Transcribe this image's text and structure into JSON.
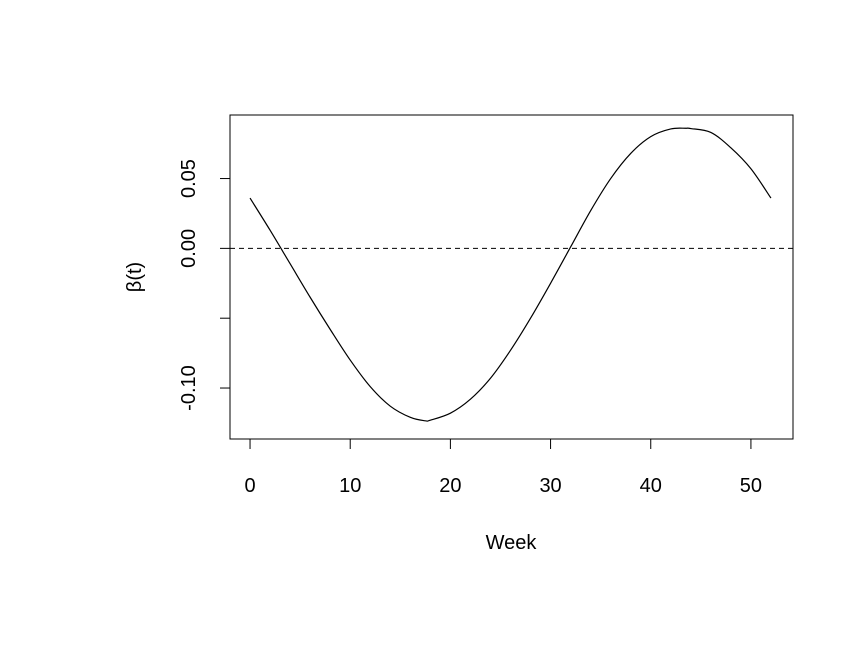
{
  "chart_data": {
    "type": "line",
    "title": "",
    "xlabel": "Week",
    "ylabel": "β(t)",
    "xlim": [
      -2,
      54.2
    ],
    "ylim": [
      -0.1365,
      0.0955
    ],
    "x_ticks": [
      0,
      10,
      20,
      30,
      40,
      50
    ],
    "x_tick_labels": [
      "0",
      "10",
      "20",
      "30",
      "40",
      "50"
    ],
    "y_ticks": [
      -0.1,
      -0.05,
      0.0,
      0.05
    ],
    "y_tick_labels": [
      "-0.10",
      "",
      "0.00",
      "0.05"
    ],
    "grid": false,
    "reference_line": {
      "y": 0,
      "style": "dashed"
    },
    "series": [
      {
        "x": [
          0,
          2,
          4,
          6,
          8,
          10,
          12,
          14,
          16,
          17.5,
          18,
          20,
          22,
          24,
          26,
          28,
          30,
          32,
          34,
          36,
          38,
          40,
          42,
          43.5,
          44,
          46,
          48,
          50,
          52
        ],
        "y": [
          0.036,
          0.013,
          -0.011,
          -0.035,
          -0.058,
          -0.08,
          -0.099,
          -0.113,
          -0.121,
          -0.1235,
          -0.123,
          -0.118,
          -0.108,
          -0.093,
          -0.073,
          -0.05,
          -0.025,
          0.001,
          0.027,
          0.05,
          0.068,
          0.08,
          0.0855,
          0.086,
          0.0858,
          0.083,
          0.072,
          0.057,
          0.036
        ]
      }
    ]
  }
}
